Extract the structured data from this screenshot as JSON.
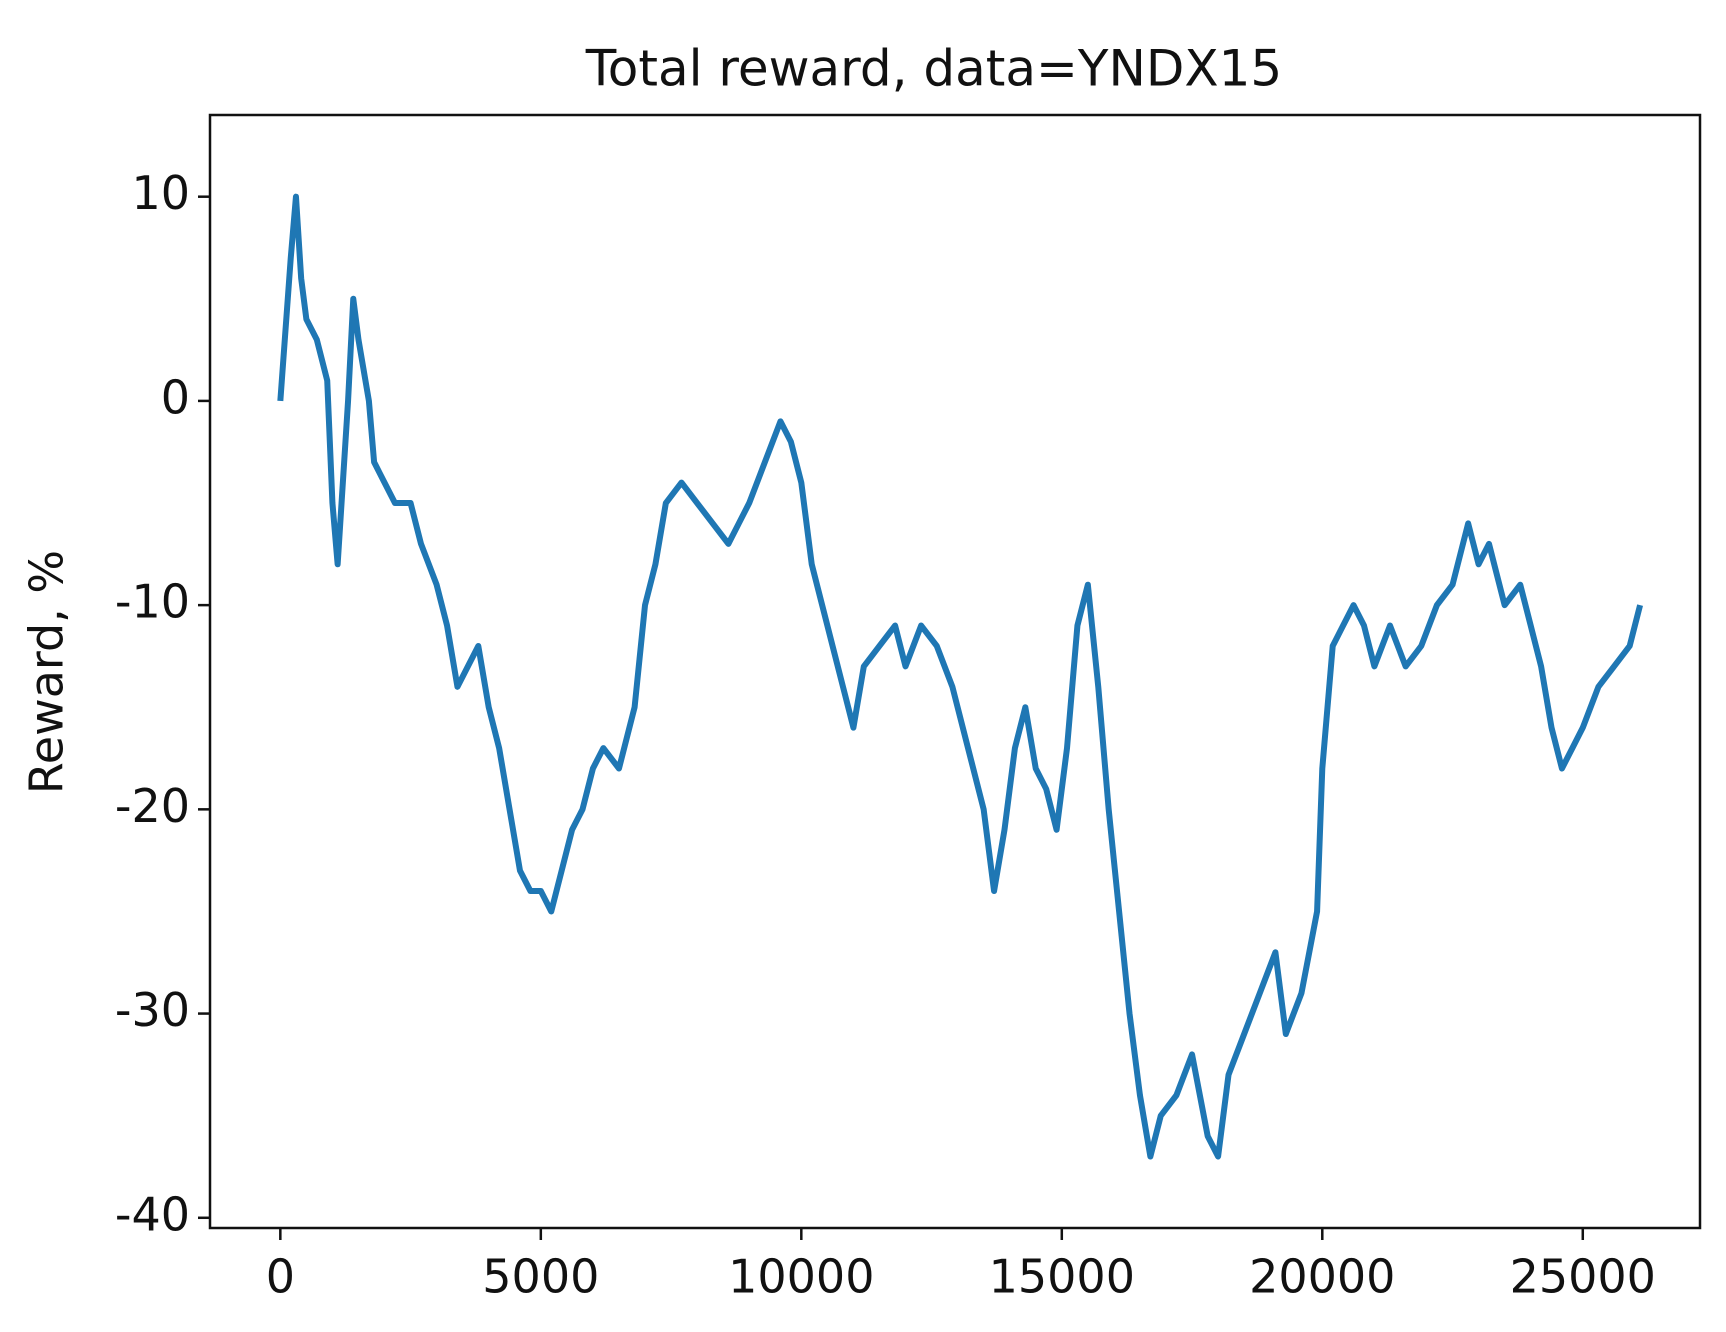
{
  "chart_data": {
    "type": "line",
    "title": "Total reward, data=YNDX15",
    "y_label": "Reward, %",
    "x": [
      0,
      200,
      300,
      400,
      500,
      700,
      900,
      1000,
      1100,
      1200,
      1300,
      1400,
      1500,
      1700,
      1800,
      2000,
      2200,
      2500,
      2700,
      3000,
      3200,
      3400,
      3600,
      3800,
      4000,
      4200,
      4400,
      4600,
      4800,
      5000,
      5200,
      5400,
      5600,
      5800,
      6000,
      6200,
      6500,
      6800,
      7000,
      7200,
      7400,
      7700,
      8000,
      8300,
      8600,
      8800,
      9000,
      9300,
      9600,
      9800,
      10000,
      10200,
      10400,
      10600,
      10800,
      11000,
      11200,
      11500,
      11800,
      12000,
      12300,
      12600,
      12900,
      13200,
      13500,
      13700,
      13900,
      14100,
      14300,
      14500,
      14700,
      14900,
      15100,
      15300,
      15500,
      15700,
      15900,
      16100,
      16300,
      16500,
      16700,
      16900,
      17200,
      17500,
      17800,
      18000,
      18200,
      18500,
      18800,
      19100,
      19300,
      19600,
      19900,
      20000,
      20200,
      20400,
      20600,
      20800,
      21000,
      21300,
      21600,
      21900,
      22200,
      22500,
      22800,
      23000,
      23200,
      23500,
      23800,
      24000,
      24200,
      24400,
      24600,
      24800,
      25000,
      25300,
      25600,
      25900,
      26100
    ],
    "series": [
      {
        "name": "Total reward",
        "color": "#1f77b4",
        "values": [
          0,
          7,
          10,
          6,
          4,
          3,
          1,
          -5,
          -8,
          -4,
          0,
          5,
          3,
          0,
          -3,
          -4,
          -5,
          -5,
          -7,
          -9,
          -11,
          -14,
          -13,
          -12,
          -15,
          -17,
          -20,
          -23,
          -24,
          -24,
          -25,
          -23,
          -21,
          -20,
          -18,
          -17,
          -18,
          -15,
          -10,
          -8,
          -5,
          -4,
          -5,
          -6,
          -7,
          -6,
          -5,
          -3,
          -1,
          -2,
          -4,
          -8,
          -10,
          -12,
          -14,
          -16,
          -13,
          -12,
          -11,
          -13,
          -11,
          -12,
          -14,
          -17,
          -20,
          -24,
          -21,
          -17,
          -15,
          -18,
          -19,
          -21,
          -17,
          -11,
          -9,
          -14,
          -20,
          -25,
          -30,
          -34,
          -37,
          -35,
          -34,
          -32,
          -36,
          -37,
          -33,
          -31,
          -29,
          -27,
          -31,
          -29,
          -25,
          -18,
          -12,
          -11,
          -10,
          -11,
          -13,
          -11,
          -13,
          -12,
          -10,
          -9,
          -6,
          -8,
          -7,
          -10,
          -9,
          -11,
          -13,
          -16,
          -18,
          -17,
          -16,
          -14,
          -13,
          -12,
          -10
        ]
      }
    ],
    "xlim": [
      -1350,
      27250
    ],
    "ylim": [
      -40.5,
      14
    ],
    "xticks": [
      0,
      5000,
      10000,
      15000,
      20000,
      25000
    ],
    "yticks": [
      -40,
      -30,
      -20,
      -10,
      0,
      10
    ],
    "grid": false
  }
}
